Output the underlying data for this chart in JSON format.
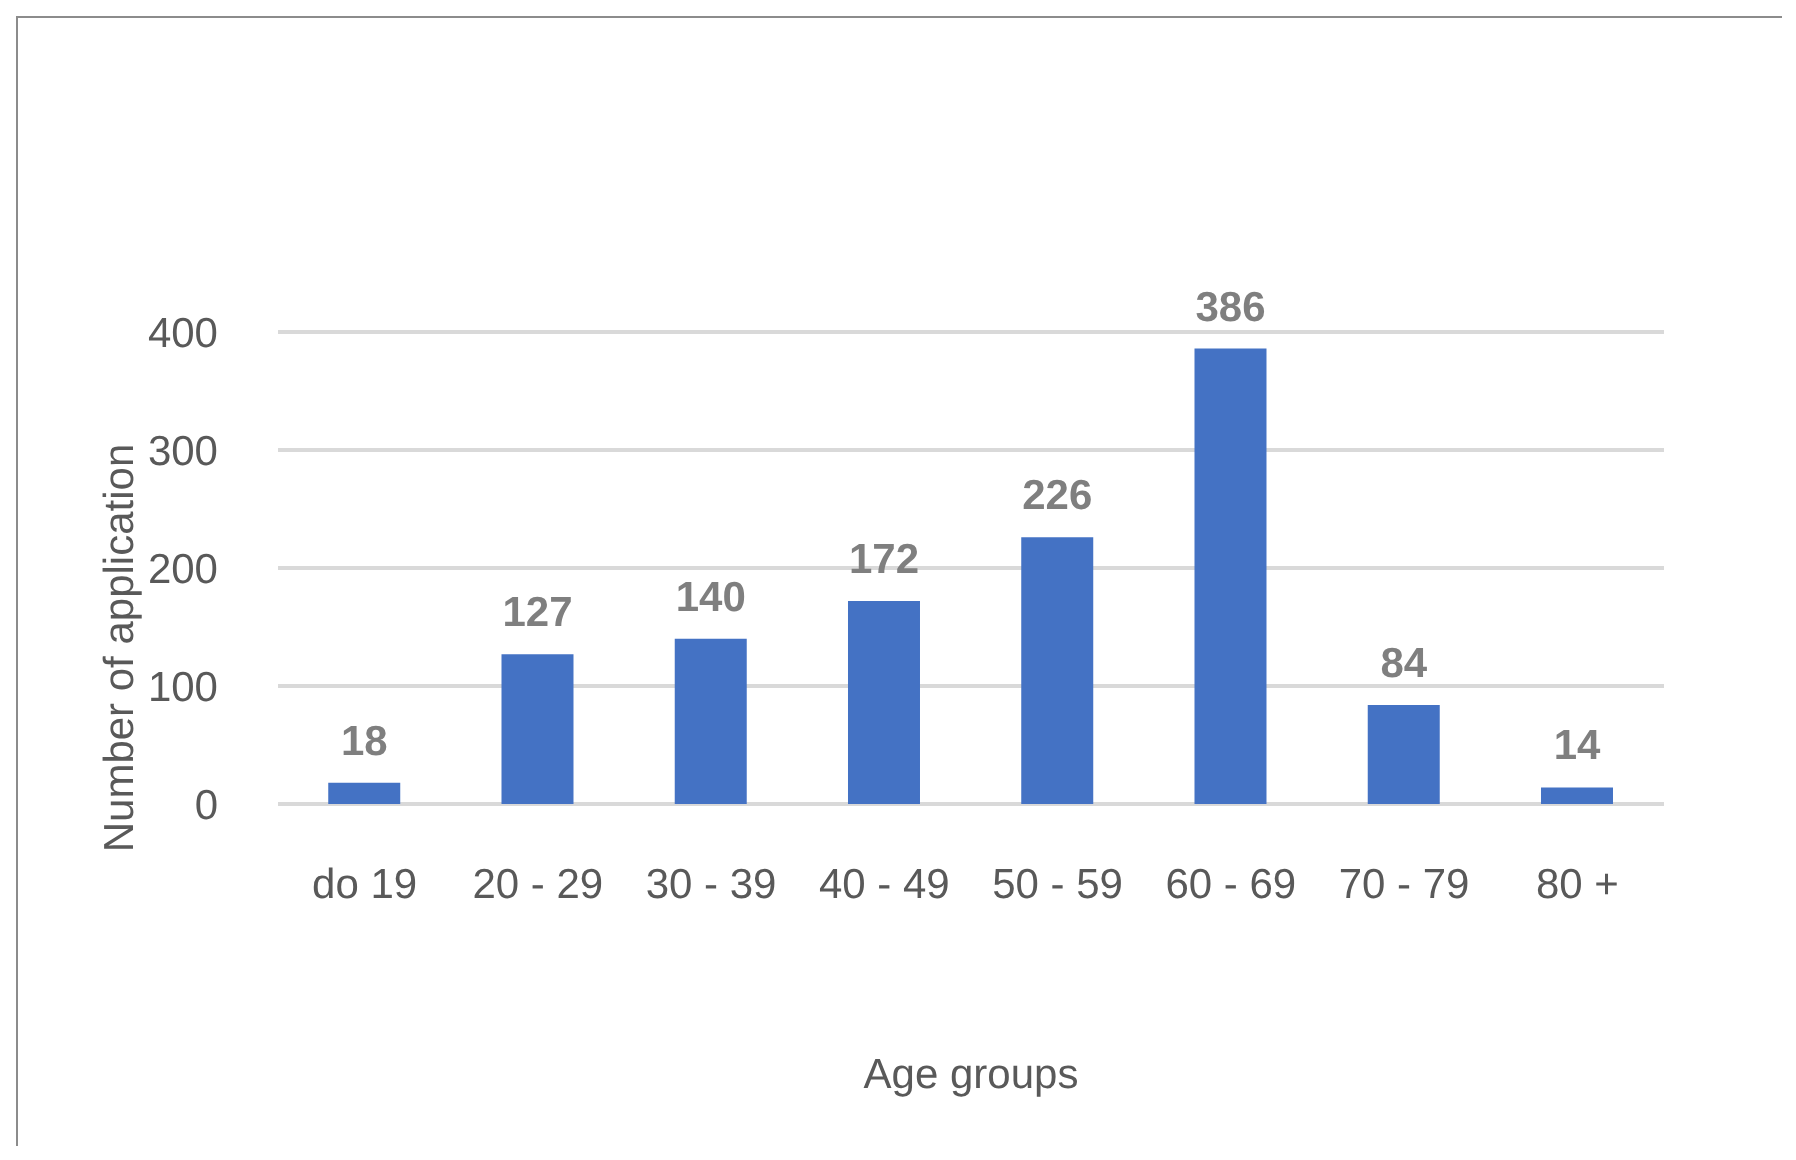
{
  "chart_data": {
    "type": "bar",
    "xlabel": "Age groups",
    "ylabel": "Number of application",
    "categories": [
      "do 19",
      "20 - 29",
      "30 - 39",
      "40 - 49",
      "50 - 59",
      "60 - 69",
      "70 - 79",
      "80 +"
    ],
    "values": [
      18,
      127,
      140,
      172,
      226,
      386,
      84,
      14
    ],
    "color": "#4472c4",
    "ylim": [
      0,
      400
    ],
    "yticks": [
      0,
      100,
      200,
      300,
      400
    ],
    "grid": "y",
    "data_labels": true
  }
}
